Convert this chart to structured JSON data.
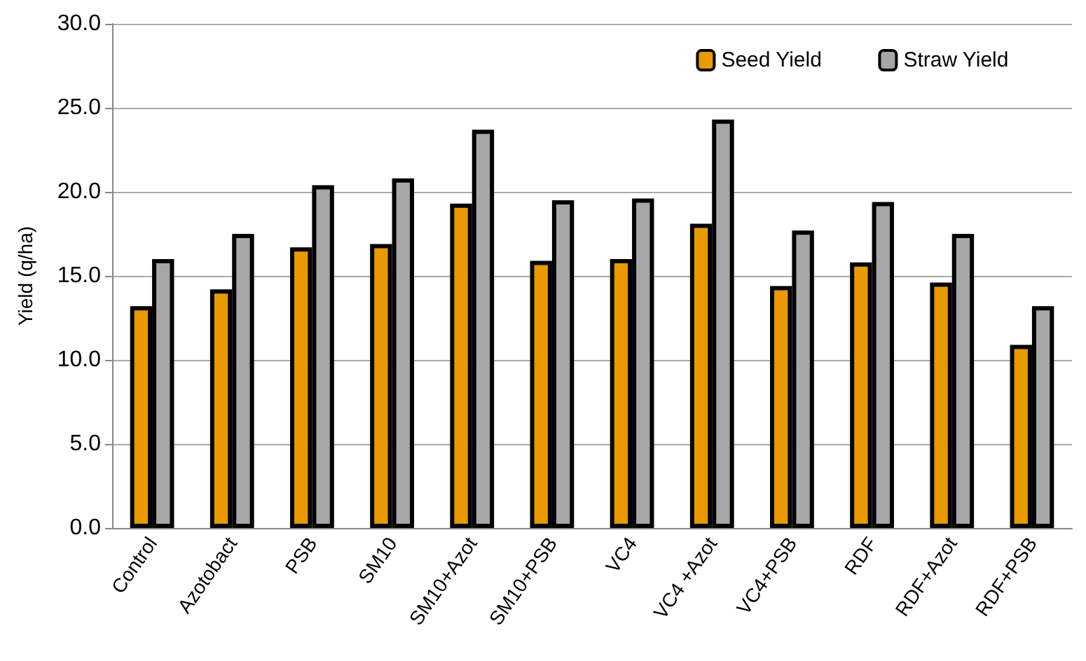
{
  "chart_data": {
    "type": "bar",
    "ylabel": "Yield (q/ha)",
    "categories": [
      "Control",
      "Azotobact",
      "PSB",
      "SM10",
      "SM10+Azot",
      "SM10+PSB",
      "VC4",
      "VC4 +Azot",
      "VC4+PSB",
      "RDF",
      "RDF+Azot",
      "RDF+PSB"
    ],
    "series": [
      {
        "name": "Seed Yield",
        "color": "#e89a00",
        "values": [
          13.2,
          14.2,
          16.7,
          16.9,
          19.3,
          15.9,
          16.0,
          18.1,
          14.4,
          15.8,
          14.6,
          10.9
        ]
      },
      {
        "name": "Straw Yield",
        "color": "#a6a6a6",
        "values": [
          16.0,
          17.5,
          20.4,
          20.8,
          23.7,
          19.5,
          19.6,
          24.3,
          17.7,
          19.4,
          17.5,
          13.2
        ]
      }
    ],
    "ylim": [
      0,
      30
    ],
    "yticks": [
      {
        "value": 0,
        "label": "0.0"
      },
      {
        "value": 5,
        "label": "5.0"
      },
      {
        "value": 10,
        "label": "10.0"
      },
      {
        "value": 15,
        "label": "15.0"
      },
      {
        "value": 20,
        "label": "20.0"
      },
      {
        "value": 25,
        "label": "25.0"
      },
      {
        "value": 30,
        "label": "30.0"
      }
    ],
    "grid": "y",
    "legend": "top right"
  }
}
